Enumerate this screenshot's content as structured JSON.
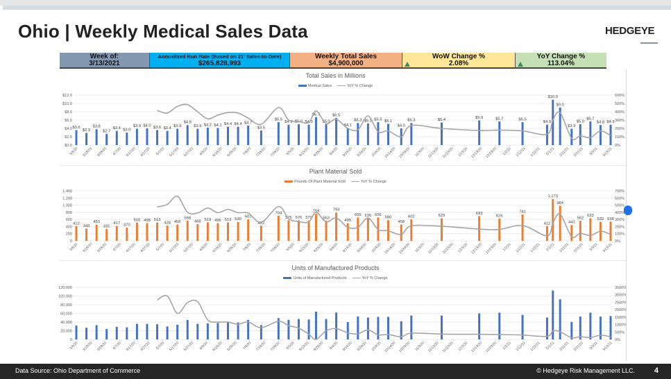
{
  "header": {
    "title": "Ohio | Weekly Medical Sales Data",
    "logo": "HEDGEYE"
  },
  "kpis": [
    {
      "label": "Week of:",
      "value": "3/13/2021",
      "color": "#8497b0"
    },
    {
      "label": "Annualized Run Rate (Based on 21' Sales-to-Date)",
      "value": "$265,828,993",
      "color": "#00b0f0"
    },
    {
      "label": "Weekly Total Sales",
      "value": "$4,900,000",
      "color": "#f4b183"
    },
    {
      "label": "WoW Change %",
      "value": "2.08%",
      "color": "#ffe699",
      "icon": "arrow-up-icon"
    },
    {
      "label": "YoY Change %",
      "value": "113.04%",
      "color": "#c5e0b4",
      "icon": "arrow-up-icon"
    }
  ],
  "footer": {
    "source": "Data Source: Ohio Department of Commerce",
    "copyright": "© Hedgeye Risk Management LLC.",
    "page": "4"
  },
  "chart_data": [
    {
      "type": "bar+line",
      "title": "Total Sales in Millions",
      "bar_series": "Medical Sales",
      "line_series": "YoY % Change",
      "bar_color": "#4472c4",
      "line_color": "#a5a5a5",
      "y_ticks": [
        "$0.0",
        "$2.0",
        "$4.0",
        "$6.0",
        "$8.0",
        "$10.0",
        "$12.0"
      ],
      "ylim": [
        0,
        12
      ],
      "y2_ticks": [
        "0%",
        "100%",
        "200%",
        "300%",
        "400%",
        "500%",
        "600%"
      ],
      "y2lim": [
        0,
        600
      ],
      "values": [
        3.6,
        2.9,
        3.8,
        2.7,
        3.4,
        3.0,
        3.9,
        4.0,
        3.6,
        3.4,
        3.9,
        4.8,
        3.9,
        4.2,
        4.1,
        4.4,
        4.4,
        4.7,
        3.5,
        5.5,
        4.9,
        5.0,
        4.9,
        6.7,
        5.0,
        6.5,
        4.1,
        5.3,
        5.2,
        5.5,
        5.1,
        4.0,
        5.3,
        5.4,
        5.9,
        5.7,
        5.5,
        4.9,
        10.9,
        9.0,
        3.9,
        5.0,
        5.7,
        4.8,
        4.9
      ],
      "data_labels": [
        "$3.6",
        "$2.9",
        "$3.8",
        "$2.7",
        "$3.4",
        "$3.0",
        "$3.9",
        "$4.0",
        "$3.6",
        "$3.4",
        "$3.9",
        "$4.8",
        "$3.9",
        "$4.2",
        "$4.1",
        "$4.4",
        "$4.4",
        "$4.7",
        "$3.5",
        "$5.5",
        "$4.9",
        "$5.0",
        "$4.9",
        "$6.7",
        "$5.0",
        "$6.5",
        "$4.1",
        "$5.3",
        "$5.2",
        "$5.5",
        "$5.1",
        "$4.0",
        "$5.3",
        "$5.4",
        "$5.9",
        "$5.7",
        "$5.5",
        "$4.9",
        "$10.9",
        "$9.0",
        "$3.9",
        "$5.0",
        "$5.7",
        "$4.8",
        "$4.9"
      ],
      "yoy_start_index": 8,
      "yoy": [
        415,
        385,
        465,
        485,
        400,
        315,
        360,
        390,
        385,
        325,
        250,
        450,
        300,
        285,
        270,
        410,
        260,
        310,
        200,
        185,
        350,
        160,
        170,
        100,
        235,
        200,
        175,
        180,
        170,
        130,
        300,
        390,
        80,
        110,
        90,
        170,
        113
      ]
    },
    {
      "type": "bar+line",
      "title": "Plant Material Sold",
      "bar_series": "Pounds Of Plant Material Sold",
      "line_series": "YoY % Change",
      "bar_color": "#ed7d31",
      "line_color": "#a5a5a5",
      "y_ticks": [
        "0",
        "200",
        "400",
        "600",
        "800",
        "1,000",
        "1,200",
        "1,400"
      ],
      "ylim": [
        0,
        1400
      ],
      "y2_ticks": [
        "0%",
        "100%",
        "200%",
        "300%",
        "400%",
        "500%",
        "600%",
        "700%"
      ],
      "y2lim": [
        0,
        700
      ],
      "values": [
        412,
        343,
        453,
        331,
        417,
        370,
        510,
        498,
        513,
        428,
        456,
        568,
        468,
        519,
        496,
        513,
        530,
        601,
        422,
        704,
        576,
        576,
        570,
        759,
        563,
        793,
        495,
        655,
        635,
        656,
        580,
        458,
        602,
        629,
        693,
        626,
        741,
        412,
        1173,
        984,
        443,
        562,
        633,
        532,
        538
      ],
      "data_labels": [
        "412",
        "343",
        "453",
        "331",
        "417",
        "370",
        "510",
        "498",
        "513",
        "428",
        "456",
        "568",
        "468",
        "519",
        "496",
        "513",
        "530",
        "601",
        "422",
        "704",
        "576",
        "576",
        "570",
        "759",
        "563",
        "793",
        "495",
        "655",
        "635",
        "656",
        "580",
        "458",
        "602",
        "629",
        "693",
        "626",
        "741",
        "412",
        "1,173",
        "984",
        "443",
        "562",
        "633",
        "532",
        "538"
      ],
      "yoy_start_index": 8,
      "yoy": [
        475,
        510,
        625,
        400,
        390,
        460,
        395,
        440,
        395,
        390,
        260,
        480,
        310,
        270,
        265,
        400,
        265,
        320,
        190,
        190,
        320,
        160,
        140,
        90,
        210,
        205,
        165,
        160,
        215,
        70,
        250,
        375,
        60,
        105,
        75,
        135,
        90
      ]
    },
    {
      "type": "bar+line",
      "title": "Units of Manufactured Products",
      "bar_series": "Units of Manufactured Products",
      "line_series": "YoY % Change",
      "bar_color": "#4472c4",
      "line_color": "#a5a5a5",
      "y_ticks": [
        "0",
        "20,000",
        "40,000",
        "60,000",
        "80,000",
        "100,000",
        "120,000"
      ],
      "ylim": [
        0,
        120000
      ],
      "y2_ticks": [
        "0%",
        "500%",
        "1000%",
        "1500%",
        "2000%",
        "2500%",
        "3000%",
        "3500%"
      ],
      "y2lim": [
        0,
        3500
      ],
      "values": [
        32000,
        27000,
        33000,
        24000,
        29000,
        28000,
        36000,
        36000,
        35000,
        30000,
        34000,
        45000,
        36000,
        37000,
        38000,
        40000,
        39000,
        45000,
        33000,
        49000,
        45000,
        47000,
        46000,
        64000,
        47000,
        62000,
        40000,
        53000,
        50500,
        52000,
        52000,
        42000,
        55000,
        55000,
        60000,
        61700,
        56600,
        50500,
        112700,
        92500,
        40400,
        52700,
        61700,
        52700,
        53800
      ],
      "data_labels": [],
      "yoy_start_index": 8,
      "yoy": [
        2650,
        2920,
        1750,
        2480,
        2540,
        1310,
        1170,
        1170,
        1020,
        1170,
        790,
        1220,
        930,
        760,
        350,
        0,
        580,
        730,
        440,
        380,
        640,
        310,
        330,
        180,
        425,
        360,
        345,
        330,
        295,
        210,
        570,
        520,
        115,
        180,
        130,
        280,
        180
      ]
    }
  ],
  "dates": [
    "2020-03-08",
    "2020-03-15",
    "2020-03-22",
    "2020-03-29",
    "2020-04-05",
    "2020-04-12",
    "2020-04-19",
    "2020-04-26",
    "2020-05-03",
    "2020-05-10",
    "2020-05-17",
    "2020-05-24",
    "2020-05-31",
    "2020-06-07",
    "2020-06-14",
    "2020-06-21",
    "2020-06-28",
    "2020-07-05",
    "2020-07-14",
    "2020-07-26",
    "2020-08-02",
    "2020-08-09",
    "2020-08-16",
    "2020-08-21",
    "2020-08-28",
    "2020-09-04",
    "2020-09-12",
    "2020-09-19",
    "2020-09-26",
    "2020-10-03",
    "2020-10-10",
    "2020-10-19",
    "2020-10-26",
    "2020-11-16",
    "2020-12-12",
    "2020-12-26",
    "2021-01-11",
    "2021-01-28",
    "2021-02-01",
    "2021-02-06",
    "2021-02-14",
    "2021-02-20",
    "2021-02-27",
    "2021-03-06",
    "2021-03-13"
  ],
  "x_ticks": [
    "3/8/20",
    "3/18/20",
    "3/28/20",
    "4/7/20",
    "4/17/20",
    "4/27/20",
    "5/7/20",
    "5/17/20",
    "5/27/20",
    "6/6/20",
    "6/16/20",
    "6/26/20",
    "7/6/20",
    "7/16/20",
    "7/26/20",
    "8/5/20",
    "8/15/20",
    "8/25/20",
    "9/4/20",
    "9/14/20",
    "9/24/20",
    "10/4/20",
    "10/14/20",
    "10/24/20",
    "11/3/20",
    "11/13/20",
    "11/23/20",
    "12/3/20",
    "12/13/20",
    "12/23/20",
    "1/2/21",
    "1/12/21",
    "1/22/21",
    "2/1/21",
    "2/11/21",
    "2/21/21",
    "3/3/21",
    "3/13/21"
  ],
  "x_range": [
    "2020-03-08",
    "2021-03-13"
  ]
}
